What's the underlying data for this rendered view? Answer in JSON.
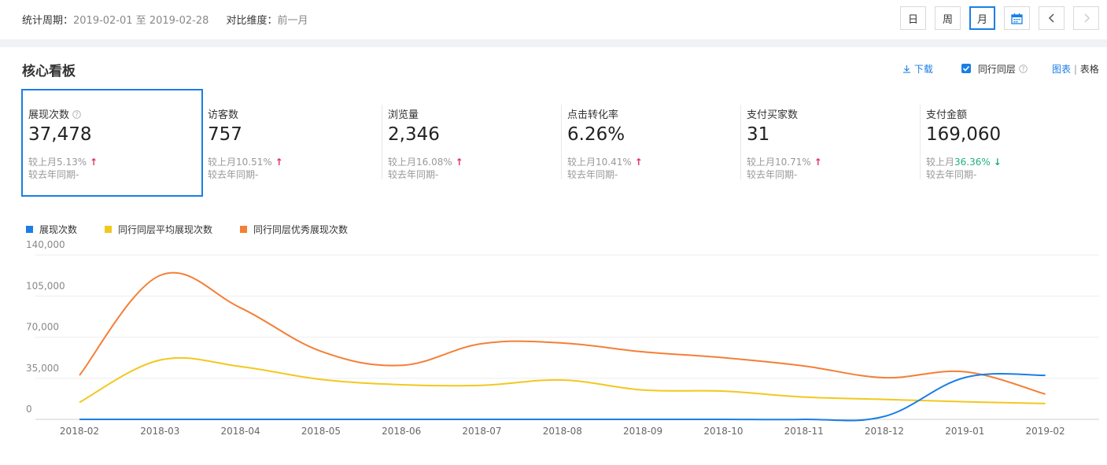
{
  "header": {
    "period_label": "统计周期：",
    "period_value": "2019-02-01 至 2019-02-28",
    "compare_label": "对比维度：",
    "compare_value": "前一月",
    "buttons": {
      "day": "日",
      "week": "周",
      "month": "月"
    },
    "active_button": "month"
  },
  "board": {
    "title": "核心看板",
    "download": "下载",
    "peer_checkbox": "同行同层",
    "peer_checked": true,
    "view_chart": "图表",
    "view_sep": "|",
    "view_table": "表格"
  },
  "metrics": [
    {
      "label": "展现次数",
      "value": "37,478",
      "cmp_prefix": "较上月",
      "cmp_value": "5.13%",
      "trend": "up",
      "yoy": "较去年同期-",
      "has_help": true
    },
    {
      "label": "访客数",
      "value": "757",
      "cmp_prefix": "较上月",
      "cmp_value": "10.51%",
      "trend": "up",
      "yoy": "较去年同期-"
    },
    {
      "label": "浏览量",
      "value": "2,346",
      "cmp_prefix": "较上月",
      "cmp_value": "16.08%",
      "trend": "up",
      "yoy": "较去年同期-"
    },
    {
      "label": "点击转化率",
      "value": "6.26%",
      "cmp_prefix": "较上月",
      "cmp_value": "10.41%",
      "trend": "up",
      "yoy": "较去年同期-"
    },
    {
      "label": "支付买家数",
      "value": "31",
      "cmp_prefix": "较上月",
      "cmp_value": "10.71%",
      "trend": "up",
      "yoy": "较去年同期-"
    },
    {
      "label": "支付金额",
      "value": "169,060",
      "cmp_prefix": "较上月",
      "cmp_value": "36.36%",
      "trend": "down",
      "yoy": "较去年同期-"
    }
  ],
  "colors": {
    "accent": "#1a7ee6",
    "up": "#e0335a",
    "down": "#1fb07a"
  },
  "chart_data": {
    "type": "line",
    "x": [
      "2018-02",
      "2018-03",
      "2018-04",
      "2018-05",
      "2018-06",
      "2018-07",
      "2018-08",
      "2018-09",
      "2018-10",
      "2018-11",
      "2018-12",
      "2019-01",
      "2019-02"
    ],
    "yticks": [
      "0",
      "35,000",
      "70,000",
      "105,000",
      "140,000"
    ],
    "ylim": [
      0,
      140000
    ],
    "grid": true,
    "legend_position": "top-left",
    "series": [
      {
        "name": "展现次数",
        "color": "#1a7ee6",
        "values": [
          0,
          0,
          0,
          0,
          0,
          0,
          0,
          0,
          0,
          0,
          2500,
          35600,
          37478
        ]
      },
      {
        "name": "同行同层平均展现次数",
        "color": "#f2c81e",
        "values": [
          14500,
          50500,
          45000,
          34000,
          29500,
          29000,
          33500,
          25000,
          24000,
          19000,
          17000,
          15000,
          13500
        ]
      },
      {
        "name": "同行同层优秀展现次数",
        "color": "#f47f35",
        "values": [
          37500,
          122500,
          95000,
          58000,
          46000,
          64500,
          65000,
          57500,
          52500,
          45500,
          35500,
          40500,
          21500
        ]
      }
    ]
  }
}
